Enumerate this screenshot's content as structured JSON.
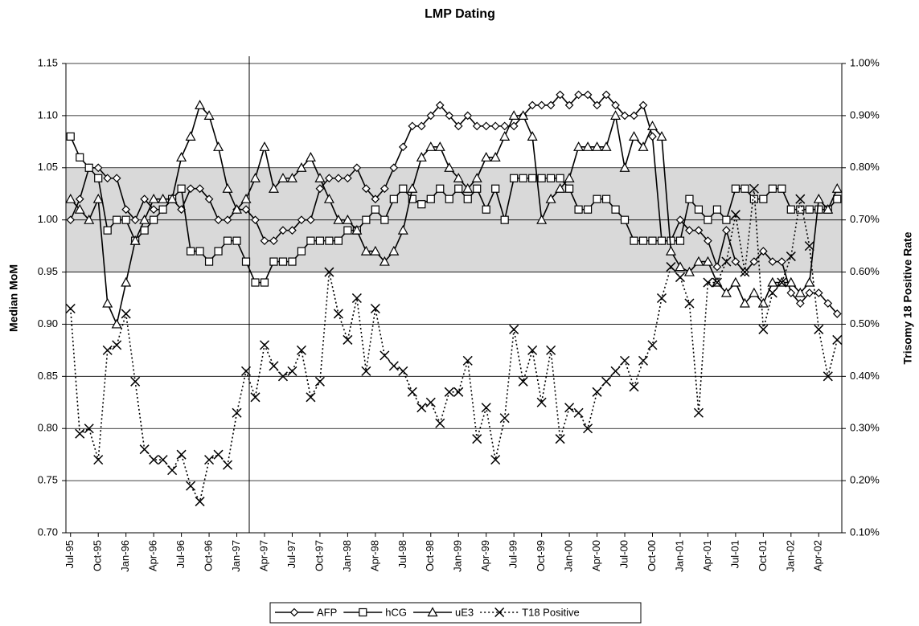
{
  "chart_data": {
    "type": "line",
    "title": "LMP Dating",
    "ylabel": "Median MoM",
    "y2label": "Trisomy 18 Positive Rate",
    "categories": [
      "Jul-95",
      null,
      null,
      "Oct-95",
      null,
      null,
      "Jan-96",
      null,
      null,
      "Apr-96",
      null,
      null,
      "Jul-96",
      null,
      null,
      "Oct-96",
      null,
      null,
      "Jan-97",
      null,
      null,
      "Apr-97",
      null,
      null,
      "Jul-97",
      null,
      null,
      "Oct-97",
      null,
      null,
      "Jan-98",
      null,
      null,
      "Apr-98",
      null,
      null,
      "Jul-98",
      null,
      null,
      "Oct-98",
      null,
      null,
      "Jan-99",
      null,
      null,
      "Apr-99",
      null,
      null,
      "Jul-99",
      null,
      null,
      "Oct-99",
      null,
      null,
      "Jan-00",
      null,
      null,
      "Apr-00",
      null,
      null,
      "Jul-00",
      null,
      null,
      "Oct-00",
      null,
      null,
      "Jan-01",
      null,
      null,
      "Apr-01",
      null,
      null,
      "Jul-01",
      null,
      null,
      "Oct-01",
      null,
      null,
      "Jan-02",
      null,
      null,
      "Apr-02",
      null,
      null
    ],
    "ylim": [
      0.7,
      1.15
    ],
    "yticks": [
      {
        "value": 0.7,
        "label": "0.70"
      },
      {
        "value": 0.75,
        "label": "0.75"
      },
      {
        "value": 0.8,
        "label": "0.80"
      },
      {
        "value": 0.85,
        "label": "0.85"
      },
      {
        "value": 0.9,
        "label": "0.90"
      },
      {
        "value": 0.95,
        "label": "0.95"
      },
      {
        "value": 1.0,
        "label": "1.00"
      },
      {
        "value": 1.05,
        "label": "1.05"
      },
      {
        "value": 1.1,
        "label": "1.10"
      },
      {
        "value": 1.15,
        "label": "1.15"
      }
    ],
    "y2lim": [
      0.1,
      1.0
    ],
    "y2ticks": [
      {
        "value": 0.1,
        "label": "0.10%"
      },
      {
        "value": 0.2,
        "label": "0.20%"
      },
      {
        "value": 0.3,
        "label": "0.30%"
      },
      {
        "value": 0.4,
        "label": "0.40%"
      },
      {
        "value": 0.5,
        "label": "0.50%"
      },
      {
        "value": 0.6,
        "label": "0.60%"
      },
      {
        "value": 0.7,
        "label": "0.70%"
      },
      {
        "value": 0.8,
        "label": "0.80%"
      },
      {
        "value": 0.9,
        "label": "0.90%"
      },
      {
        "value": 1.0,
        "label": "1.00%"
      }
    ],
    "grid": true,
    "band": {
      "ylim": [
        0.95,
        1.05
      ],
      "color": "#d9d9d9"
    },
    "legend": "bottom",
    "series": [
      {
        "name": "AFP",
        "color": "#000000",
        "marker": "diamond",
        "dash": "solid",
        "values": [
          1.0,
          1.02,
          1.05,
          1.05,
          1.04,
          1.04,
          1.01,
          1.0,
          1.02,
          1.01,
          1.01,
          1.02,
          1.01,
          1.03,
          1.03,
          1.02,
          1.0,
          1.0,
          1.01,
          1.01,
          1.0,
          0.98,
          0.98,
          0.99,
          0.99,
          1.0,
          1.0,
          1.03,
          1.04,
          1.04,
          1.04,
          1.05,
          1.03,
          1.02,
          1.03,
          1.05,
          1.07,
          1.09,
          1.09,
          1.1,
          1.11,
          1.1,
          1.09,
          1.1,
          1.09,
          1.09,
          1.09,
          1.09,
          1.09,
          1.1,
          1.11,
          1.11,
          1.11,
          1.12,
          1.11,
          1.12,
          1.12,
          1.11,
          1.12,
          1.11,
          1.1,
          1.1,
          1.11,
          1.08,
          0.98,
          0.98,
          1.0,
          0.99,
          0.99,
          0.98,
          0.955,
          0.99,
          0.96,
          0.95,
          0.96,
          0.97,
          0.96,
          0.96,
          0.93,
          0.92,
          0.93,
          0.93,
          0.92,
          0.91
        ]
      },
      {
        "name": "hCG",
        "color": "#000000",
        "marker": "square",
        "dash": "solid",
        "values": [
          1.08,
          1.06,
          1.05,
          1.04,
          0.99,
          1.0,
          1.0,
          0.98,
          0.99,
          1.0,
          1.01,
          1.02,
          1.03,
          0.97,
          0.97,
          0.96,
          0.97,
          0.98,
          0.98,
          0.96,
          0.94,
          0.94,
          0.96,
          0.96,
          0.96,
          0.97,
          0.98,
          0.98,
          0.98,
          0.98,
          0.99,
          0.99,
          1.0,
          1.01,
          1.0,
          1.02,
          1.03,
          1.02,
          1.015,
          1.02,
          1.03,
          1.02,
          1.03,
          1.02,
          1.03,
          1.01,
          1.03,
          1.0,
          1.04,
          1.04,
          1.04,
          1.04,
          1.04,
          1.04,
          1.03,
          1.01,
          1.01,
          1.02,
          1.02,
          1.01,
          1.0,
          0.98,
          0.98,
          0.98,
          0.98,
          0.98,
          0.98,
          1.02,
          1.01,
          1.0,
          1.01,
          1.0,
          1.03,
          1.03,
          1.02,
          1.02,
          1.03,
          1.03,
          1.01,
          1.01,
          1.01,
          1.01,
          1.01,
          1.02
        ]
      },
      {
        "name": "uE3",
        "color": "#000000",
        "marker": "triangle",
        "dash": "solid",
        "values": [
          1.02,
          1.01,
          1.0,
          1.02,
          0.92,
          0.9,
          0.94,
          0.98,
          1.0,
          1.02,
          1.02,
          1.02,
          1.06,
          1.08,
          1.11,
          1.1,
          1.07,
          1.03,
          1.01,
          1.02,
          1.04,
          1.07,
          1.03,
          1.04,
          1.04,
          1.05,
          1.06,
          1.04,
          1.02,
          1.0,
          1.0,
          0.99,
          0.97,
          0.97,
          0.96,
          0.97,
          0.99,
          1.03,
          1.06,
          1.07,
          1.07,
          1.05,
          1.04,
          1.03,
          1.04,
          1.06,
          1.06,
          1.08,
          1.1,
          1.1,
          1.08,
          1.0,
          1.02,
          1.03,
          1.04,
          1.07,
          1.07,
          1.07,
          1.07,
          1.1,
          1.05,
          1.08,
          1.07,
          1.09,
          1.08,
          0.97,
          0.955,
          0.95,
          0.96,
          0.96,
          0.94,
          0.93,
          0.94,
          0.92,
          0.93,
          0.92,
          0.94,
          0.94,
          0.94,
          0.93,
          0.94,
          1.02,
          1.01,
          1.03
        ]
      },
      {
        "name": "T18 Positive",
        "color": "#000000",
        "marker": "x",
        "dash": "dotted",
        "axis": "y2",
        "values": [
          0.53,
          0.29,
          0.3,
          0.24,
          0.45,
          0.46,
          0.52,
          0.39,
          0.26,
          0.24,
          0.24,
          0.22,
          0.25,
          0.19,
          0.16,
          0.24,
          0.25,
          0.23,
          0.33,
          0.41,
          0.36,
          0.46,
          0.42,
          0.4,
          0.41,
          0.45,
          0.36,
          0.39,
          0.6,
          0.52,
          0.47,
          0.55,
          0.41,
          0.53,
          0.44,
          0.42,
          0.41,
          0.37,
          0.34,
          0.35,
          0.31,
          0.37,
          0.37,
          0.43,
          0.28,
          0.34,
          0.24,
          0.32,
          0.49,
          0.39,
          0.45,
          0.35,
          0.45,
          0.28,
          0.34,
          0.33,
          0.3,
          0.37,
          0.39,
          0.41,
          0.43,
          0.38,
          0.43,
          0.46,
          0.55,
          0.61,
          0.59,
          0.54,
          0.33,
          0.58,
          0.58,
          0.62,
          0.71,
          0.6,
          0.76,
          0.49,
          0.56,
          0.58,
          0.63,
          0.74,
          0.65,
          0.49,
          0.4,
          0.47
        ]
      }
    ]
  }
}
